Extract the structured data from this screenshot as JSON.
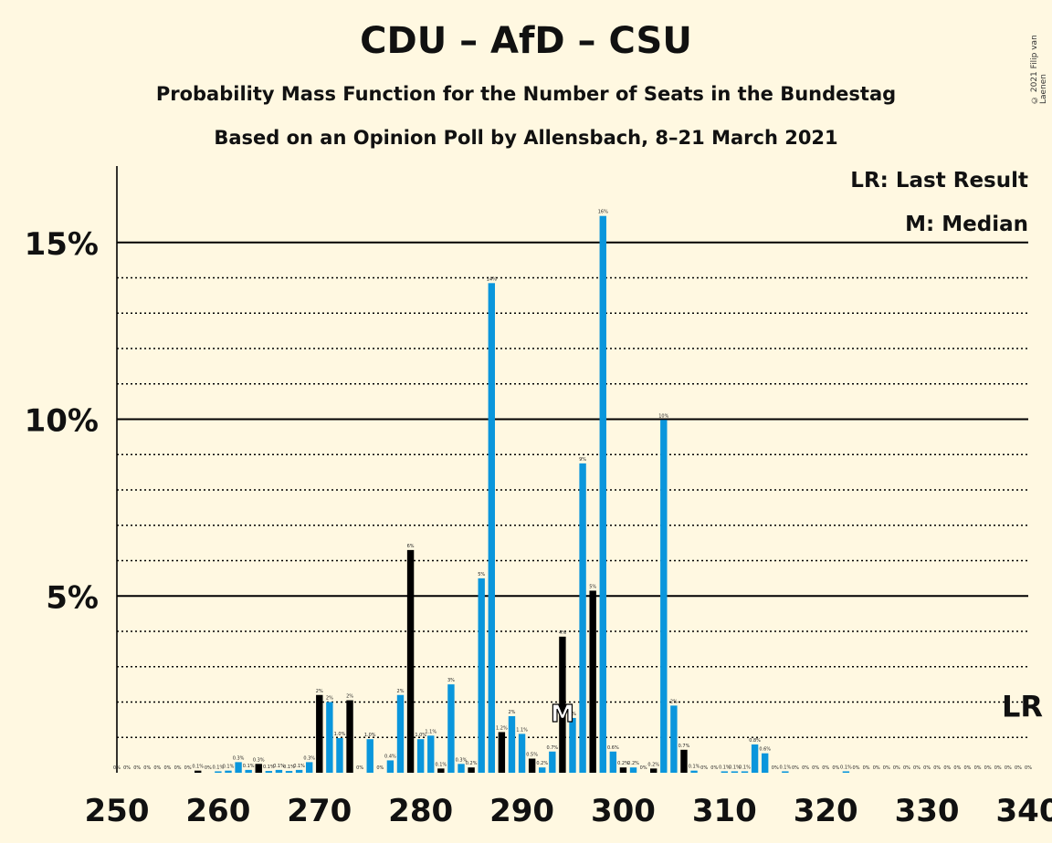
{
  "title": "CDU – AfD – CSU",
  "subtitle1": "Probability Mass Function for the Number of Seats in the Bundestag",
  "subtitle2": "Based on an Opinion Poll by Allensbach, 8–21 March 2021",
  "copyright": "© 2021 Filip van Laenen",
  "legend": {
    "last_result": "LR: Last Result",
    "median": "M: Median"
  },
  "colors": {
    "background": "#fff8e1",
    "bar_blue": "#0a96dc",
    "bar_black": "#000000",
    "grid": "#000000"
  },
  "chart_data": {
    "type": "bar",
    "xlim": [
      250,
      340
    ],
    "ylim": [
      0,
      17
    ],
    "x_ticks": [
      250,
      260,
      270,
      280,
      290,
      300,
      310,
      320,
      330,
      340
    ],
    "x_tick_labels": [
      "250",
      "260",
      "270",
      "280",
      "290",
      "300",
      "310",
      "320",
      "330",
      "340"
    ],
    "y_ticks": [
      5,
      10,
      15
    ],
    "y_tick_labels": [
      "5%",
      "10%",
      "15%"
    ],
    "y_minor_gridlines": [
      1,
      2,
      3,
      4,
      6,
      7,
      8,
      9,
      11,
      12,
      13,
      14
    ],
    "markers": {
      "median_seat": 294,
      "median_label": "M",
      "last_result_label": "LR",
      "last_result_level": 1.9
    },
    "bars": [
      {
        "x": 250,
        "v": 0.02,
        "c": "k",
        "l": "0%"
      },
      {
        "x": 251,
        "v": 0.02,
        "c": "b",
        "l": "0%"
      },
      {
        "x": 252,
        "v": 0.02,
        "c": "b",
        "l": "0%"
      },
      {
        "x": 253,
        "v": 0.02,
        "c": "b",
        "l": "0%"
      },
      {
        "x": 254,
        "v": 0.02,
        "c": "b",
        "l": "0%"
      },
      {
        "x": 255,
        "v": 0.02,
        "c": "b",
        "l": "0%"
      },
      {
        "x": 256,
        "v": 0.02,
        "c": "b",
        "l": "0%"
      },
      {
        "x": 257,
        "v": 0.02,
        "c": "b",
        "l": "0%"
      },
      {
        "x": 258,
        "v": 0.06,
        "c": "k",
        "l": "0.1%"
      },
      {
        "x": 259,
        "v": 0.02,
        "c": "b",
        "l": "0%"
      },
      {
        "x": 260,
        "v": 0.04,
        "c": "b",
        "l": "0.1%"
      },
      {
        "x": 261,
        "v": 0.06,
        "c": "b",
        "l": "0.1%"
      },
      {
        "x": 262,
        "v": 0.3,
        "c": "b",
        "l": "0.3%"
      },
      {
        "x": 263,
        "v": 0.08,
        "c": "b",
        "l": "0.1%"
      },
      {
        "x": 264,
        "v": 0.25,
        "c": "k",
        "l": "0.3%"
      },
      {
        "x": 265,
        "v": 0.05,
        "c": "b",
        "l": "0.1%"
      },
      {
        "x": 266,
        "v": 0.08,
        "c": "b",
        "l": "0.1%"
      },
      {
        "x": 267,
        "v": 0.05,
        "c": "b",
        "l": "0.1%"
      },
      {
        "x": 268,
        "v": 0.08,
        "c": "b",
        "l": "0.1%"
      },
      {
        "x": 269,
        "v": 0.3,
        "c": "b",
        "l": "0.3%"
      },
      {
        "x": 270,
        "v": 2.2,
        "c": "k",
        "l": "2%"
      },
      {
        "x": 271,
        "v": 2.0,
        "c": "b",
        "l": "2%"
      },
      {
        "x": 272,
        "v": 0.98,
        "c": "b",
        "l": "1.0%"
      },
      {
        "x": 273,
        "v": 2.05,
        "c": "k",
        "l": "2%"
      },
      {
        "x": 274,
        "v": 0.02,
        "c": "b",
        "l": "0%"
      },
      {
        "x": 275,
        "v": 0.95,
        "c": "b",
        "l": "1.0%"
      },
      {
        "x": 276,
        "v": 0.02,
        "c": "b",
        "l": "0%"
      },
      {
        "x": 277,
        "v": 0.35,
        "c": "b",
        "l": "0.4%"
      },
      {
        "x": 278,
        "v": 2.2,
        "c": "b",
        "l": "2%"
      },
      {
        "x": 279,
        "v": 6.3,
        "c": "k",
        "l": "6%"
      },
      {
        "x": 280,
        "v": 0.95,
        "c": "b",
        "l": "1.0%"
      },
      {
        "x": 281,
        "v": 1.05,
        "c": "b",
        "l": "1.1%"
      },
      {
        "x": 282,
        "v": 0.12,
        "c": "k",
        "l": "0.1%"
      },
      {
        "x": 283,
        "v": 2.5,
        "c": "b",
        "l": "3%"
      },
      {
        "x": 284,
        "v": 0.25,
        "c": "b",
        "l": "0.3%"
      },
      {
        "x": 285,
        "v": 0.15,
        "c": "k",
        "l": "0.2%"
      },
      {
        "x": 286,
        "v": 5.5,
        "c": "b",
        "l": "5%"
      },
      {
        "x": 287,
        "v": 13.85,
        "c": "b",
        "l": "14%"
      },
      {
        "x": 288,
        "v": 1.15,
        "c": "k",
        "l": "1.2%"
      },
      {
        "x": 289,
        "v": 1.6,
        "c": "b",
        "l": "2%"
      },
      {
        "x": 290,
        "v": 1.1,
        "c": "b",
        "l": "1.1%"
      },
      {
        "x": 291,
        "v": 0.4,
        "c": "k",
        "l": "0.5%"
      },
      {
        "x": 292,
        "v": 0.15,
        "c": "b",
        "l": "0.2%"
      },
      {
        "x": 293,
        "v": 0.6,
        "c": "b",
        "l": "0.7%"
      },
      {
        "x": 294,
        "v": 3.85,
        "c": "k",
        "l": "4%"
      },
      {
        "x": 295,
        "v": 1.55,
        "c": "b",
        "l": "2%"
      },
      {
        "x": 296,
        "v": 8.75,
        "c": "b",
        "l": "9%"
      },
      {
        "x": 297,
        "v": 5.15,
        "c": "k",
        "l": "5%"
      },
      {
        "x": 298,
        "v": 15.75,
        "c": "b",
        "l": "16%"
      },
      {
        "x": 299,
        "v": 0.6,
        "c": "b",
        "l": "0.6%"
      },
      {
        "x": 300,
        "v": 0.15,
        "c": "k",
        "l": "0.2%"
      },
      {
        "x": 301,
        "v": 0.15,
        "c": "b",
        "l": "0.2%"
      },
      {
        "x": 302,
        "v": 0.02,
        "c": "b",
        "l": "0%"
      },
      {
        "x": 303,
        "v": 0.12,
        "c": "k",
        "l": "0.2%"
      },
      {
        "x": 304,
        "v": 9.98,
        "c": "b",
        "l": "10%"
      },
      {
        "x": 305,
        "v": 1.9,
        "c": "b",
        "l": "2%"
      },
      {
        "x": 306,
        "v": 0.65,
        "c": "k",
        "l": "0.7%"
      },
      {
        "x": 307,
        "v": 0.06,
        "c": "b",
        "l": "0.1%"
      },
      {
        "x": 308,
        "v": 0.02,
        "c": "b",
        "l": "0%"
      },
      {
        "x": 309,
        "v": 0.02,
        "c": "b",
        "l": "0%"
      },
      {
        "x": 310,
        "v": 0.04,
        "c": "b",
        "l": "0.1%"
      },
      {
        "x": 311,
        "v": 0.04,
        "c": "b",
        "l": "0.1%"
      },
      {
        "x": 312,
        "v": 0.04,
        "c": "b",
        "l": "0.1%"
      },
      {
        "x": 313,
        "v": 0.8,
        "c": "b",
        "l": "0.8%"
      },
      {
        "x": 314,
        "v": 0.55,
        "c": "b",
        "l": "0.6%"
      },
      {
        "x": 315,
        "v": 0.02,
        "c": "b",
        "l": "0%"
      },
      {
        "x": 316,
        "v": 0.04,
        "c": "b",
        "l": "0.1%"
      },
      {
        "x": 317,
        "v": 0.02,
        "c": "b",
        "l": "0%"
      },
      {
        "x": 318,
        "v": 0.02,
        "c": "b",
        "l": "0%"
      },
      {
        "x": 319,
        "v": 0.02,
        "c": "b",
        "l": "0%"
      },
      {
        "x": 320,
        "v": 0.02,
        "c": "b",
        "l": "0%"
      },
      {
        "x": 321,
        "v": 0.02,
        "c": "b",
        "l": "0%"
      },
      {
        "x": 322,
        "v": 0.04,
        "c": "b",
        "l": "0.1%"
      },
      {
        "x": 323,
        "v": 0.02,
        "c": "b",
        "l": "0%"
      },
      {
        "x": 324,
        "v": 0.02,
        "c": "b",
        "l": "0%"
      },
      {
        "x": 325,
        "v": 0.02,
        "c": "b",
        "l": "0%"
      },
      {
        "x": 326,
        "v": 0.02,
        "c": "b",
        "l": "0%"
      },
      {
        "x": 327,
        "v": 0.02,
        "c": "b",
        "l": "0%"
      },
      {
        "x": 328,
        "v": 0.02,
        "c": "b",
        "l": "0%"
      },
      {
        "x": 329,
        "v": 0.02,
        "c": "b",
        "l": "0%"
      },
      {
        "x": 330,
        "v": 0.02,
        "c": "b",
        "l": "0%"
      },
      {
        "x": 331,
        "v": 0.02,
        "c": "b",
        "l": "0%"
      },
      {
        "x": 332,
        "v": 0.02,
        "c": "b",
        "l": "0%"
      },
      {
        "x": 333,
        "v": 0.02,
        "c": "b",
        "l": "0%"
      },
      {
        "x": 334,
        "v": 0.02,
        "c": "b",
        "l": "0%"
      },
      {
        "x": 335,
        "v": 0.02,
        "c": "b",
        "l": "0%"
      },
      {
        "x": 336,
        "v": 0.02,
        "c": "b",
        "l": "0%"
      },
      {
        "x": 337,
        "v": 0.02,
        "c": "b",
        "l": "0%"
      },
      {
        "x": 338,
        "v": 0.02,
        "c": "b",
        "l": "0%"
      },
      {
        "x": 339,
        "v": 0.02,
        "c": "b",
        "l": "0%"
      },
      {
        "x": 340,
        "v": 0.02,
        "c": "b",
        "l": "0%"
      }
    ]
  }
}
